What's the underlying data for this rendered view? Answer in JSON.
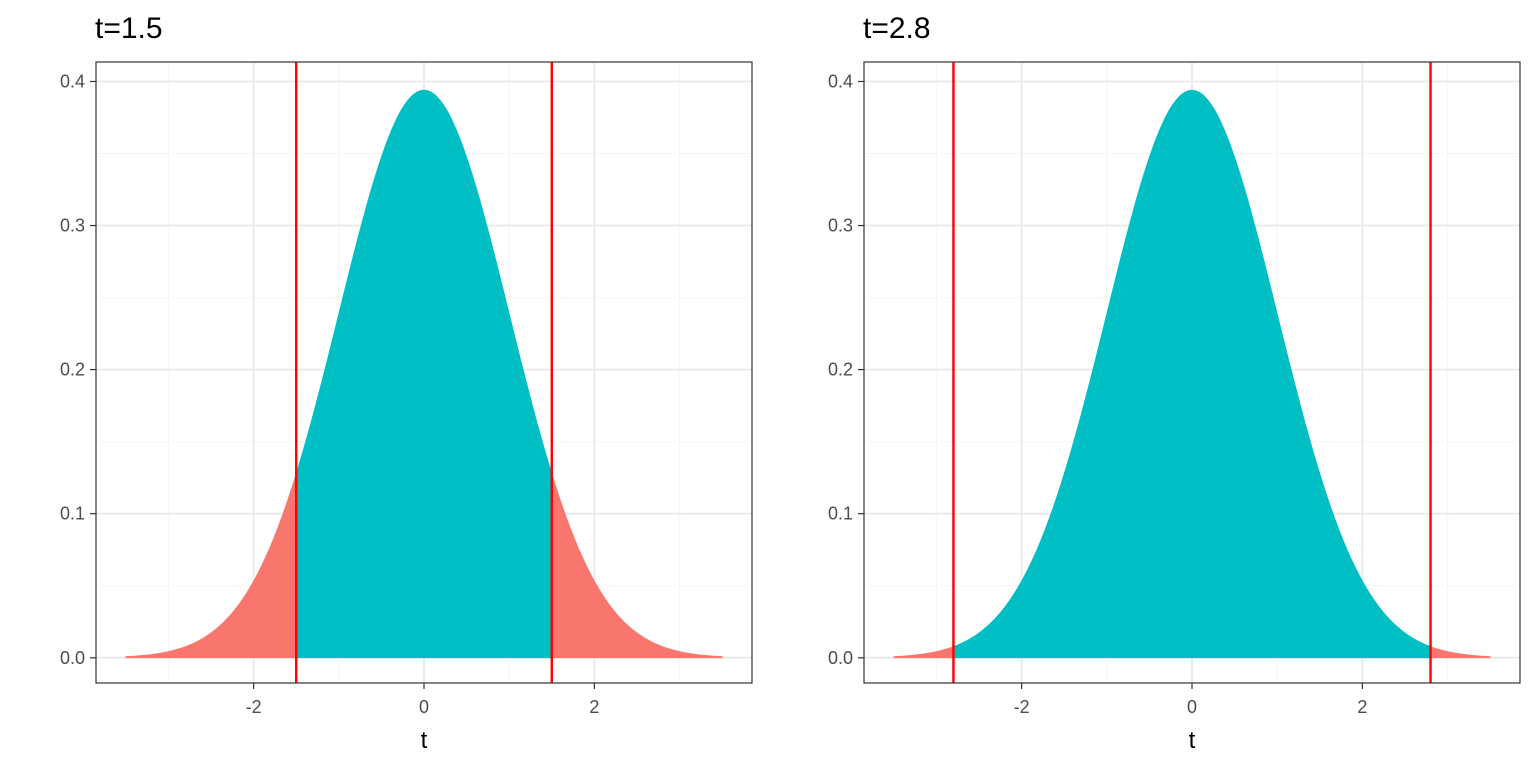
{
  "colors": {
    "tail": "#F8766D",
    "body": "#00BFC4",
    "cutoff_line": "#FF0000",
    "grid_major": "#EBEBEB",
    "grid_minor": "#F5F5F5",
    "panel_border": "#333333"
  },
  "chart_data": [
    {
      "type": "area",
      "title": "t=1.5",
      "xlabel": "t",
      "ylabel": "",
      "xlim": [
        -3.85,
        3.85
      ],
      "ylim": [
        -0.0175,
        0.4135
      ],
      "x_ticks": [
        -2,
        0,
        2
      ],
      "y_ticks": [
        0.0,
        0.1,
        0.2,
        0.3,
        0.4
      ],
      "y_tick_labels": [
        "0.0",
        "0.1",
        "0.2",
        "0.3",
        "0.4"
      ],
      "grid": true,
      "distribution": "normal",
      "x_range": [
        -3.5,
        3.5
      ],
      "peak_density": 0.394,
      "cutoff": 1.5,
      "cutoff_lines": [
        -1.5,
        1.5
      ],
      "regions": [
        {
          "range": [
            -3.5,
            -1.5
          ],
          "fill": "tail"
        },
        {
          "range": [
            -1.5,
            1.5
          ],
          "fill": "body"
        },
        {
          "range": [
            1.5,
            3.5
          ],
          "fill": "tail"
        }
      ]
    },
    {
      "type": "area",
      "title": "t=2.8",
      "xlabel": "t",
      "ylabel": "",
      "xlim": [
        -3.85,
        3.85
      ],
      "ylim": [
        -0.0175,
        0.4135
      ],
      "x_ticks": [
        -2,
        0,
        2
      ],
      "y_ticks": [
        0.0,
        0.1,
        0.2,
        0.3,
        0.4
      ],
      "y_tick_labels": [
        "0.0",
        "0.1",
        "0.2",
        "0.3",
        "0.4"
      ],
      "grid": true,
      "distribution": "normal",
      "x_range": [
        -3.5,
        3.5
      ],
      "peak_density": 0.394,
      "cutoff": 2.8,
      "cutoff_lines": [
        -2.8,
        2.8
      ],
      "regions": [
        {
          "range": [
            -3.5,
            -2.8
          ],
          "fill": "tail"
        },
        {
          "range": [
            -2.8,
            2.8
          ],
          "fill": "body"
        },
        {
          "range": [
            2.8,
            3.5
          ],
          "fill": "tail"
        }
      ]
    }
  ]
}
